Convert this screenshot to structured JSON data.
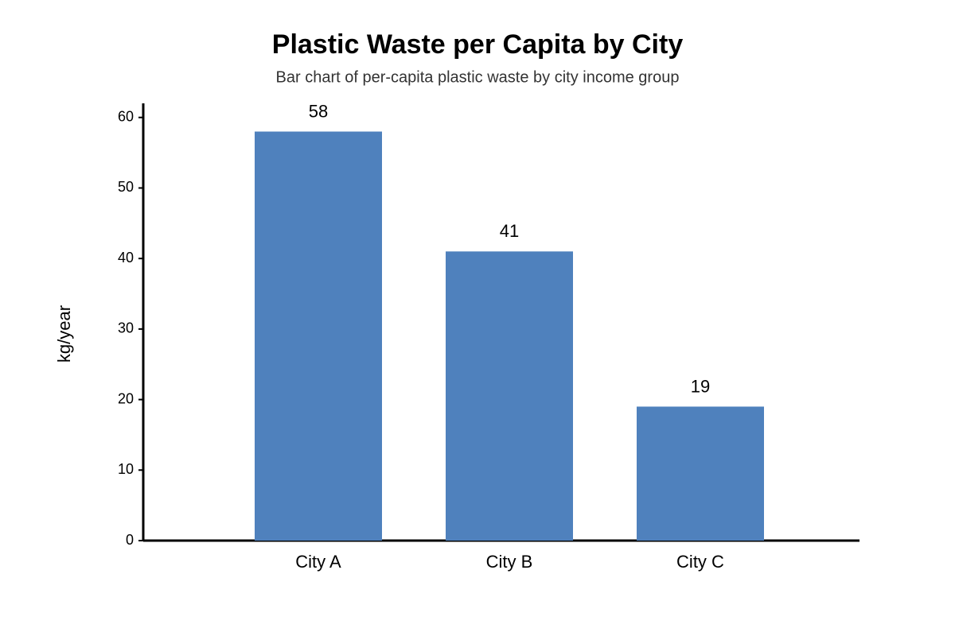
{
  "chart_data": {
    "type": "bar",
    "title": "Plastic Waste per Capita by City",
    "subtitle": "Bar chart of per-capita plastic waste by city income group",
    "y_label": "kg/year",
    "categories": [
      "City A",
      "City B",
      "City C"
    ],
    "values": [
      58,
      41,
      19
    ],
    "color": "#4f81bd",
    "ylim": [
      0,
      62
    ],
    "yticks": [
      0,
      10,
      20,
      30,
      40,
      50,
      60
    ],
    "grid": false
  }
}
